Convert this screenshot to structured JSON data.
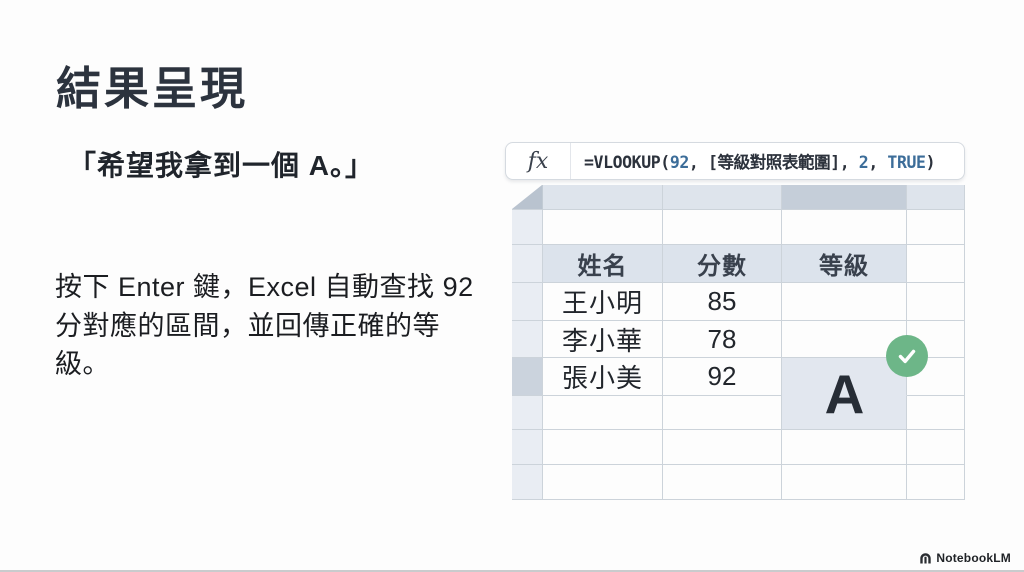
{
  "slide": {
    "title": "結果呈現",
    "quote": "「希望我拿到一個 A。」",
    "body": "按下 Enter 鍵，Excel 自動查找 92 分對應的區間，並回傳正確的等級。"
  },
  "formula_bar": {
    "fx_label": "fx",
    "formula_full": "=VLOOKUP(92, [等級對照表範圍], 2, TRUE)",
    "parts": {
      "p1": "=VLOOKUP(",
      "lookup_value": "92",
      "p2": ", [等級對照表範圍], ",
      "col_index": "2",
      "p3": ", ",
      "range_lookup": "TRUE",
      "p4": ")"
    }
  },
  "sheet": {
    "headers": [
      "姓名",
      "分數",
      "等級"
    ],
    "rows": [
      {
        "name": "王小明",
        "score": "85",
        "grade": ""
      },
      {
        "name": "李小華",
        "score": "78",
        "grade": ""
      },
      {
        "name": "張小美",
        "score": "92",
        "grade": "A"
      }
    ],
    "result": {
      "value": "A",
      "status_icon": "check"
    }
  },
  "footer": {
    "brand": "NotebookLM"
  },
  "colors": {
    "formula_token_blue": "#3c6d99",
    "check_green": "#6db688",
    "result_cell_bg": "#e2e7ef",
    "header_cell_bg": "#dce3ec",
    "selected_column_strip": "#c5ced9",
    "gridline": "#ccd3da"
  }
}
